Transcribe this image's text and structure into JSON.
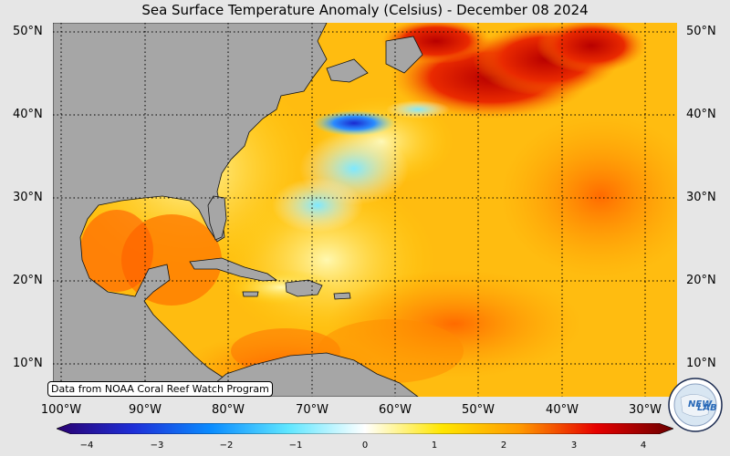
{
  "title": "Sea Surface Temperature Anomaly (Celsius) - December 08 2024",
  "lat_labels": [
    "50°N",
    "40°N",
    "30°N",
    "20°N",
    "10°N"
  ],
  "lon_labels": [
    "100°W",
    "90°W",
    "80°W",
    "70°W",
    "60°W",
    "50°W",
    "40°W",
    "30°W"
  ],
  "credit": "Data from NOAA Coral Reef Watch Program",
  "colorbar": {
    "ticks": [
      "−4",
      "−3",
      "−2",
      "−1",
      "0",
      "1",
      "2",
      "3",
      "4"
    ],
    "min": -4,
    "max": 4,
    "colors": [
      "#2a0070",
      "#1e2fd8",
      "#0a8cff",
      "#5fe6ff",
      "#ffffff",
      "#ffe600",
      "#ff9a00",
      "#e60000",
      "#6a0000"
    ]
  },
  "logo_text": [
    "NEW",
    "LAB"
  ],
  "colors": {
    "land": "#a6a6a6",
    "ocean_warm": "#ffb400",
    "ocean_hot": "#d40000",
    "ocean_cool": "#66d9ff",
    "ocean_cold": "#1010c0"
  }
}
